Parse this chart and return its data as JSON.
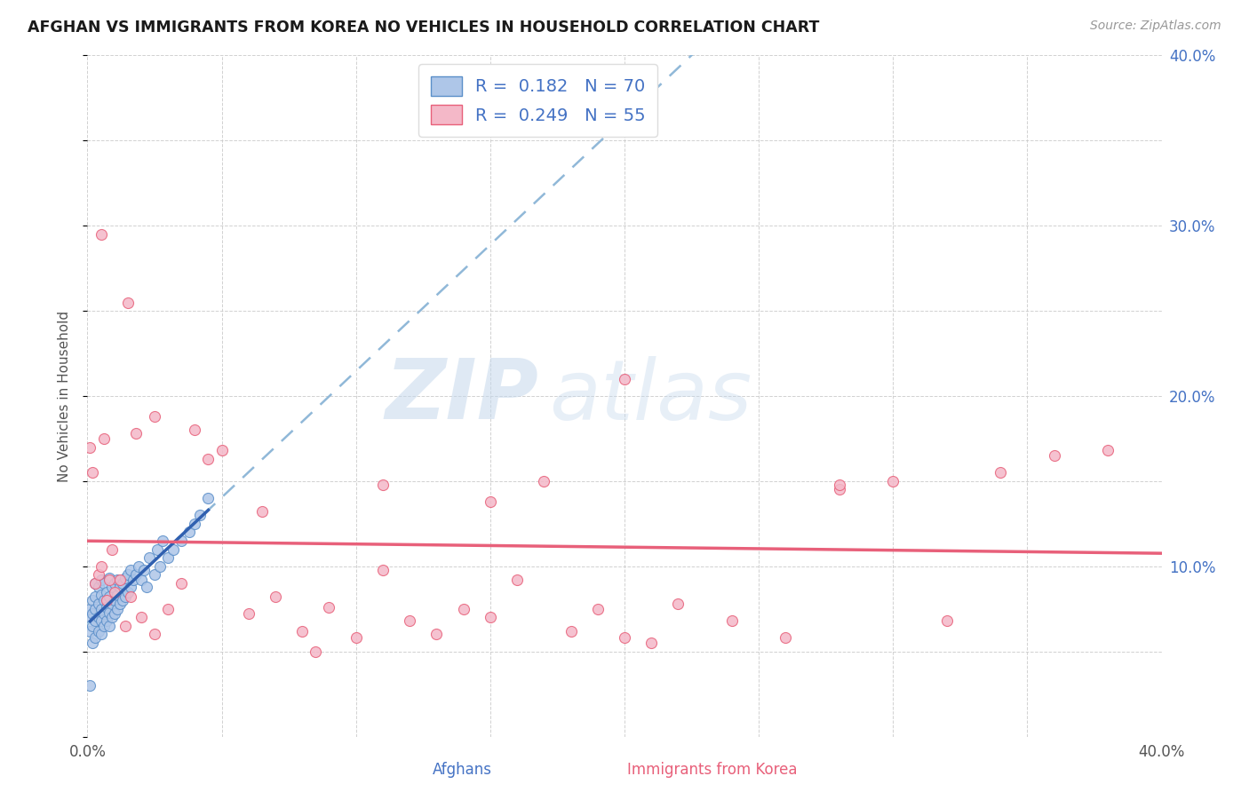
{
  "title": "AFGHAN VS IMMIGRANTS FROM KOREA NO VEHICLES IN HOUSEHOLD CORRELATION CHART",
  "source": "Source: ZipAtlas.com",
  "xlabel_afghans": "Afghans",
  "xlabel_korea": "Immigrants from Korea",
  "ylabel": "No Vehicles in Household",
  "xlim": [
    0.0,
    0.4
  ],
  "ylim": [
    0.0,
    0.4
  ],
  "afghan_R": 0.182,
  "afghan_N": 70,
  "korea_R": 0.249,
  "korea_N": 55,
  "color_afghan_fill": "#aec6e8",
  "color_afghan_edge": "#5b8fc9",
  "color_korea_fill": "#f4b8c8",
  "color_korea_edge": "#e8607a",
  "color_afghan_trend": "#3060b0",
  "color_korea_trend": "#e8607a",
  "color_dash": "#90b8d8",
  "watermark_zip": "ZIP",
  "watermark_atlas": "atlas",
  "afghan_x": [
    0.001,
    0.001,
    0.001,
    0.002,
    0.002,
    0.002,
    0.002,
    0.003,
    0.003,
    0.003,
    0.003,
    0.003,
    0.004,
    0.004,
    0.004,
    0.004,
    0.005,
    0.005,
    0.005,
    0.005,
    0.005,
    0.006,
    0.006,
    0.006,
    0.006,
    0.007,
    0.007,
    0.007,
    0.008,
    0.008,
    0.008,
    0.008,
    0.009,
    0.009,
    0.009,
    0.01,
    0.01,
    0.01,
    0.011,
    0.011,
    0.011,
    0.012,
    0.012,
    0.013,
    0.013,
    0.014,
    0.014,
    0.015,
    0.015,
    0.016,
    0.016,
    0.017,
    0.018,
    0.019,
    0.02,
    0.021,
    0.022,
    0.023,
    0.025,
    0.026,
    0.027,
    0.028,
    0.03,
    0.032,
    0.035,
    0.038,
    0.04,
    0.042,
    0.045,
    0.001
  ],
  "afghan_y": [
    0.062,
    0.07,
    0.075,
    0.055,
    0.065,
    0.072,
    0.08,
    0.058,
    0.068,
    0.075,
    0.082,
    0.09,
    0.062,
    0.07,
    0.078,
    0.088,
    0.06,
    0.068,
    0.075,
    0.083,
    0.092,
    0.065,
    0.072,
    0.08,
    0.09,
    0.068,
    0.076,
    0.085,
    0.065,
    0.073,
    0.082,
    0.093,
    0.07,
    0.078,
    0.088,
    0.072,
    0.08,
    0.09,
    0.075,
    0.083,
    0.092,
    0.078,
    0.088,
    0.08,
    0.09,
    0.082,
    0.093,
    0.085,
    0.095,
    0.088,
    0.098,
    0.092,
    0.095,
    0.1,
    0.092,
    0.098,
    0.088,
    0.105,
    0.095,
    0.11,
    0.1,
    0.115,
    0.105,
    0.11,
    0.115,
    0.12,
    0.125,
    0.13,
    0.14,
    0.03
  ],
  "korean_x": [
    0.001,
    0.002,
    0.003,
    0.004,
    0.005,
    0.006,
    0.007,
    0.008,
    0.009,
    0.01,
    0.012,
    0.014,
    0.016,
    0.018,
    0.02,
    0.025,
    0.03,
    0.035,
    0.04,
    0.05,
    0.06,
    0.07,
    0.08,
    0.09,
    0.1,
    0.11,
    0.12,
    0.13,
    0.14,
    0.15,
    0.16,
    0.17,
    0.18,
    0.19,
    0.2,
    0.21,
    0.22,
    0.24,
    0.26,
    0.28,
    0.3,
    0.32,
    0.34,
    0.36,
    0.38,
    0.005,
    0.015,
    0.025,
    0.045,
    0.065,
    0.085,
    0.11,
    0.15,
    0.2,
    0.28
  ],
  "korean_y": [
    0.17,
    0.155,
    0.09,
    0.095,
    0.1,
    0.175,
    0.08,
    0.092,
    0.11,
    0.085,
    0.092,
    0.065,
    0.082,
    0.178,
    0.07,
    0.06,
    0.075,
    0.09,
    0.18,
    0.168,
    0.072,
    0.082,
    0.062,
    0.076,
    0.058,
    0.098,
    0.068,
    0.06,
    0.075,
    0.07,
    0.092,
    0.15,
    0.062,
    0.075,
    0.21,
    0.055,
    0.078,
    0.068,
    0.058,
    0.145,
    0.15,
    0.068,
    0.155,
    0.165,
    0.168,
    0.295,
    0.255,
    0.188,
    0.163,
    0.132,
    0.05,
    0.148,
    0.138,
    0.058,
    0.148
  ]
}
